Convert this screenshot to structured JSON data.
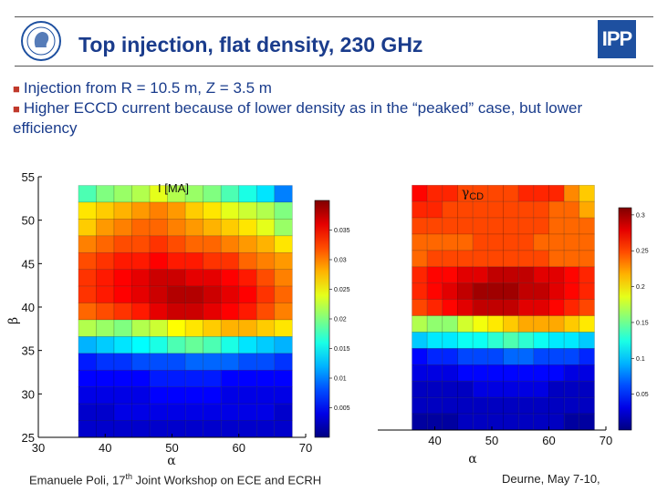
{
  "header": {
    "title": "Top injection, flat density, 230 GHz",
    "right_logo_text": "IPP"
  },
  "bullets": [
    "Injection from R = 10.5 m, Z = 3.5 m",
    "Higher ECCD current because of lower density as in the “peaked” case, but lower efficiency"
  ],
  "footer": {
    "left_pre": "Emanuele Poli, 17",
    "left_sup": "th",
    "left_post": " Joint Workshop on ECE and ECRH",
    "right": "Deurne, May 7-10,"
  },
  "chart_data": [
    {
      "type": "heatmap",
      "title": "I [MA]",
      "xlabel": "α",
      "ylabel": "β",
      "x_ticks": [
        "30",
        "40",
        "50",
        "60",
        "70"
      ],
      "y_ticks": [
        "25",
        "30",
        "35",
        "40",
        "45",
        "50",
        "55"
      ],
      "xlim": [
        30,
        70
      ],
      "ylim": [
        25,
        55
      ],
      "grid_alpha_range": [
        36,
        68
      ],
      "grid_beta_range": [
        25,
        54
      ],
      "colorbar_ticks": [
        "0.005",
        "0.01",
        "0.015",
        "0.02",
        "0.025",
        "0.03",
        "0.035"
      ],
      "vmin": 0.0,
      "vmax": 0.04,
      "values": [
        [
          0.018,
          0.02,
          0.021,
          0.022,
          0.024,
          0.022,
          0.021,
          0.02,
          0.018,
          0.016,
          0.014,
          0.01
        ],
        [
          0.026,
          0.027,
          0.028,
          0.029,
          0.03,
          0.029,
          0.027,
          0.026,
          0.024,
          0.023,
          0.022,
          0.02
        ],
        [
          0.027,
          0.029,
          0.03,
          0.031,
          0.031,
          0.03,
          0.029,
          0.028,
          0.027,
          0.026,
          0.024,
          0.021
        ],
        [
          0.03,
          0.031,
          0.032,
          0.032,
          0.033,
          0.032,
          0.031,
          0.031,
          0.03,
          0.029,
          0.028,
          0.026
        ],
        [
          0.032,
          0.033,
          0.034,
          0.034,
          0.035,
          0.034,
          0.034,
          0.033,
          0.033,
          0.031,
          0.03,
          0.029
        ],
        [
          0.033,
          0.034,
          0.035,
          0.036,
          0.037,
          0.037,
          0.036,
          0.036,
          0.035,
          0.034,
          0.032,
          0.03
        ],
        [
          0.033,
          0.034,
          0.035,
          0.036,
          0.037,
          0.038,
          0.038,
          0.037,
          0.036,
          0.035,
          0.033,
          0.031
        ],
        [
          0.031,
          0.032,
          0.033,
          0.034,
          0.036,
          0.037,
          0.037,
          0.036,
          0.035,
          0.034,
          0.032,
          0.03
        ],
        [
          0.022,
          0.021,
          0.02,
          0.022,
          0.023,
          0.025,
          0.026,
          0.027,
          0.028,
          0.028,
          0.027,
          0.026
        ],
        [
          0.012,
          0.013,
          0.014,
          0.015,
          0.016,
          0.018,
          0.019,
          0.018,
          0.016,
          0.014,
          0.013,
          0.012
        ],
        [
          0.006,
          0.007,
          0.007,
          0.008,
          0.008,
          0.008,
          0.009,
          0.009,
          0.009,
          0.008,
          0.008,
          0.007
        ],
        [
          0.005,
          0.005,
          0.005,
          0.005,
          0.006,
          0.006,
          0.006,
          0.006,
          0.005,
          0.005,
          0.005,
          0.005
        ],
        [
          0.004,
          0.004,
          0.004,
          0.004,
          0.005,
          0.005,
          0.005,
          0.005,
          0.004,
          0.004,
          0.004,
          0.004
        ],
        [
          0.003,
          0.003,
          0.004,
          0.004,
          0.004,
          0.004,
          0.004,
          0.004,
          0.004,
          0.004,
          0.004,
          0.003
        ],
        [
          0.003,
          0.003,
          0.003,
          0.003,
          0.003,
          0.003,
          0.003,
          0.003,
          0.003,
          0.003,
          0.003,
          0.003
        ]
      ]
    },
    {
      "type": "heatmap",
      "title_symbol": "γ",
      "title_sub": "CD",
      "xlabel": "α",
      "ylabel": "",
      "x_ticks": [
        "40",
        "50",
        "60",
        "70"
      ],
      "xlim": [
        30,
        70
      ],
      "ylim": [
        25,
        55
      ],
      "grid_alpha_range": [
        36,
        68
      ],
      "grid_beta_range": [
        25,
        54
      ],
      "colorbar_ticks": [
        "0.05",
        "0.1",
        "0.15",
        "0.2",
        "0.25",
        "0.3"
      ],
      "vmin": 0.0,
      "vmax": 0.31,
      "values": [
        [
          0.27,
          0.26,
          0.26,
          0.25,
          0.25,
          0.25,
          0.25,
          0.26,
          0.26,
          0.26,
          0.23,
          0.21
        ],
        [
          0.26,
          0.26,
          0.25,
          0.25,
          0.25,
          0.25,
          0.25,
          0.25,
          0.25,
          0.24,
          0.24,
          0.22
        ],
        [
          0.25,
          0.25,
          0.25,
          0.25,
          0.25,
          0.25,
          0.25,
          0.25,
          0.25,
          0.24,
          0.24,
          0.24
        ],
        [
          0.24,
          0.24,
          0.24,
          0.24,
          0.25,
          0.25,
          0.25,
          0.25,
          0.24,
          0.24,
          0.24,
          0.24
        ],
        [
          0.24,
          0.25,
          0.25,
          0.25,
          0.25,
          0.25,
          0.25,
          0.25,
          0.25,
          0.24,
          0.24,
          0.24
        ],
        [
          0.26,
          0.27,
          0.27,
          0.28,
          0.28,
          0.29,
          0.29,
          0.29,
          0.28,
          0.28,
          0.27,
          0.26
        ],
        [
          0.26,
          0.27,
          0.28,
          0.29,
          0.3,
          0.3,
          0.3,
          0.29,
          0.29,
          0.28,
          0.27,
          0.26
        ],
        [
          0.25,
          0.26,
          0.27,
          0.28,
          0.29,
          0.29,
          0.29,
          0.28,
          0.28,
          0.27,
          0.26,
          0.25
        ],
        [
          0.17,
          0.16,
          0.16,
          0.18,
          0.19,
          0.2,
          0.21,
          0.22,
          0.22,
          0.22,
          0.21,
          0.2
        ],
        [
          0.1,
          0.11,
          0.11,
          0.12,
          0.12,
          0.13,
          0.14,
          0.13,
          0.12,
          0.11,
          0.11,
          0.1
        ],
        [
          0.04,
          0.05,
          0.05,
          0.06,
          0.06,
          0.06,
          0.07,
          0.07,
          0.06,
          0.06,
          0.06,
          0.05
        ],
        [
          0.03,
          0.03,
          0.03,
          0.04,
          0.04,
          0.04,
          0.04,
          0.04,
          0.04,
          0.04,
          0.03,
          0.03
        ],
        [
          0.02,
          0.02,
          0.02,
          0.02,
          0.03,
          0.03,
          0.03,
          0.03,
          0.03,
          0.02,
          0.02,
          0.02
        ],
        [
          0.02,
          0.02,
          0.02,
          0.02,
          0.02,
          0.02,
          0.02,
          0.02,
          0.02,
          0.02,
          0.02,
          0.02
        ],
        [
          0.01,
          0.01,
          0.01,
          0.02,
          0.02,
          0.02,
          0.02,
          0.02,
          0.02,
          0.02,
          0.01,
          0.01
        ]
      ]
    }
  ]
}
